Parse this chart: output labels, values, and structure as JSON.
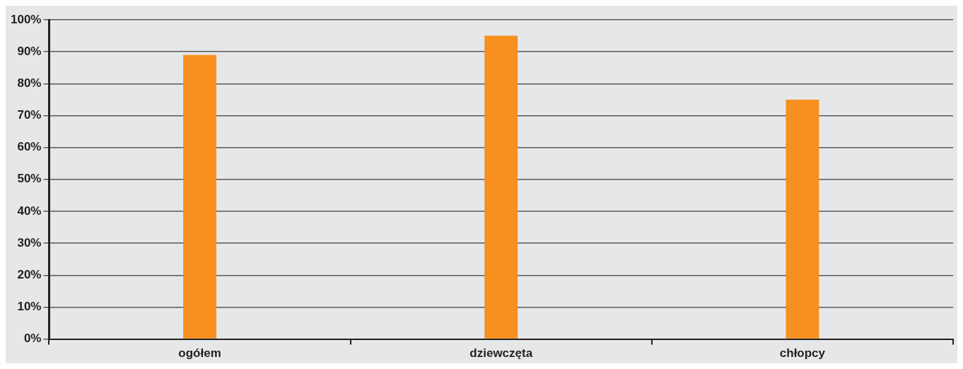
{
  "chart_data": {
    "type": "bar",
    "categories": [
      "ogółem",
      "dziewczęta",
      "chłopcy"
    ],
    "values": [
      89,
      95,
      75
    ],
    "color": "#f7901e",
    "ylim": [
      0,
      100
    ],
    "yticks": [
      {
        "value": 0,
        "label": "0%"
      },
      {
        "value": 10,
        "label": "10%"
      },
      {
        "value": 20,
        "label": "20%"
      },
      {
        "value": 30,
        "label": "30%"
      },
      {
        "value": 40,
        "label": "40%"
      },
      {
        "value": 50,
        "label": "50%"
      },
      {
        "value": 60,
        "label": "60%"
      },
      {
        "value": 70,
        "label": "70%"
      },
      {
        "value": 80,
        "label": "80%"
      },
      {
        "value": 90,
        "label": "90%"
      },
      {
        "value": 100,
        "label": "100%"
      }
    ],
    "grid": "y",
    "legend": false
  }
}
